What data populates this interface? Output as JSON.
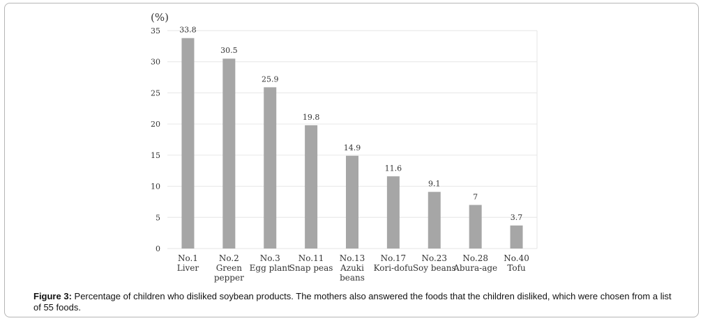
{
  "chart_data": {
    "type": "bar",
    "unit_label": "(%)",
    "categories": [
      [
        "No.1",
        "Liver"
      ],
      [
        "No.2",
        "Green",
        "pepper"
      ],
      [
        "No.3",
        "Egg plant"
      ],
      [
        "No.11",
        "Snap peas"
      ],
      [
        "No.13",
        "Azuki",
        "beans"
      ],
      [
        "No.17",
        "Kori-dofu"
      ],
      [
        "No.23",
        "Soy beans"
      ],
      [
        "No.28",
        "Abura-age"
      ],
      [
        "No.40",
        "Tofu"
      ]
    ],
    "values": [
      33.8,
      30.5,
      25.9,
      19.8,
      14.9,
      11.6,
      9.1,
      7,
      3.7
    ],
    "value_labels": [
      "33.8",
      "30.5",
      "25.9",
      "19.8",
      "14.9",
      "11.6",
      "9.1",
      "7",
      "3.7"
    ],
    "ylim": [
      0,
      35
    ],
    "yticks": [
      0,
      5,
      10,
      15,
      20,
      25,
      30,
      35
    ],
    "grid": true,
    "bar_color": "#a6a6a6",
    "grid_color": "#e6e6e6"
  },
  "caption": {
    "label": "Figure 3:",
    "text": " Percentage of children who disliked soybean products. The mothers also answered the foods that the children disliked, which were chosen from a list of 55 foods."
  }
}
